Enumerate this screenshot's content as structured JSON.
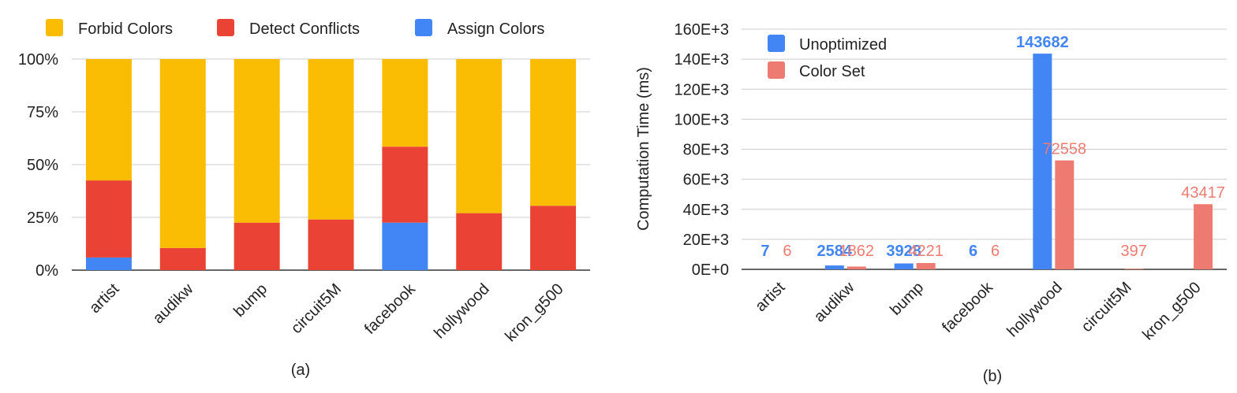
{
  "colors": {
    "forbid": "#fbbc04",
    "detect": "#ea4335",
    "assign": "#4285f4",
    "unoptimized": "#4285f4",
    "colorset": "#ee7b72",
    "grid": "#cccccc",
    "axis": "#333333",
    "text": "#222222"
  },
  "chart_data": [
    {
      "type": "bar",
      "stacked": true,
      "percent": true,
      "caption": "(a)",
      "categories": [
        "artist",
        "audikw",
        "bump",
        "circuit5M",
        "facebook",
        "hollywood",
        "kron_g500"
      ],
      "series": [
        {
          "name": "Assign Colors",
          "color_key": "assign",
          "values": [
            6,
            0,
            0,
            0,
            22.5,
            0,
            0
          ]
        },
        {
          "name": "Detect Conflicts",
          "color_key": "detect",
          "values": [
            36.5,
            10.5,
            22.5,
            24,
            36,
            27,
            30.5
          ]
        },
        {
          "name": "Forbid Colors",
          "color_key": "forbid",
          "values": [
            57.5,
            89.5,
            77.5,
            76,
            41.5,
            73,
            69.5
          ]
        }
      ],
      "legend_order": [
        "Forbid Colors",
        "Detect Conflicts",
        "Assign Colors"
      ],
      "legend_position": "top",
      "ylim": [
        0,
        100
      ],
      "yticks": [
        "0%",
        "25%",
        "50%",
        "75%",
        "100%"
      ],
      "ytick_values": [
        0,
        25,
        50,
        75,
        100
      ],
      "grid": true
    },
    {
      "type": "bar",
      "caption": "(b)",
      "ylabel": "Computation Time (ms)",
      "categories": [
        "artist",
        "audikw",
        "bump",
        "facebook",
        "hollywood",
        "circuit5M",
        "kron_g500"
      ],
      "series": [
        {
          "name": "Unoptimized",
          "color_key": "unoptimized",
          "values": [
            7,
            2584,
            3928,
            6,
            143682,
            null,
            null
          ],
          "labels": [
            "7",
            "2584",
            "3928",
            "6",
            "143682",
            "",
            ""
          ]
        },
        {
          "name": "Color Set",
          "color_key": "colorset",
          "values": [
            6,
            1862,
            4221,
            6,
            72558,
            397,
            43417
          ],
          "labels": [
            "6",
            "1862",
            "4221",
            "6",
            "72558",
            "397",
            "43417"
          ]
        }
      ],
      "legend_position": "top-left",
      "ylim": [
        0,
        160000
      ],
      "yticks": [
        "0E+0",
        "20E+3",
        "40E+3",
        "60E+3",
        "80E+3",
        "100E+3",
        "120E+3",
        "140E+3",
        "160E+3"
      ],
      "ytick_values": [
        0,
        20000,
        40000,
        60000,
        80000,
        100000,
        120000,
        140000,
        160000
      ],
      "grid": true
    }
  ]
}
